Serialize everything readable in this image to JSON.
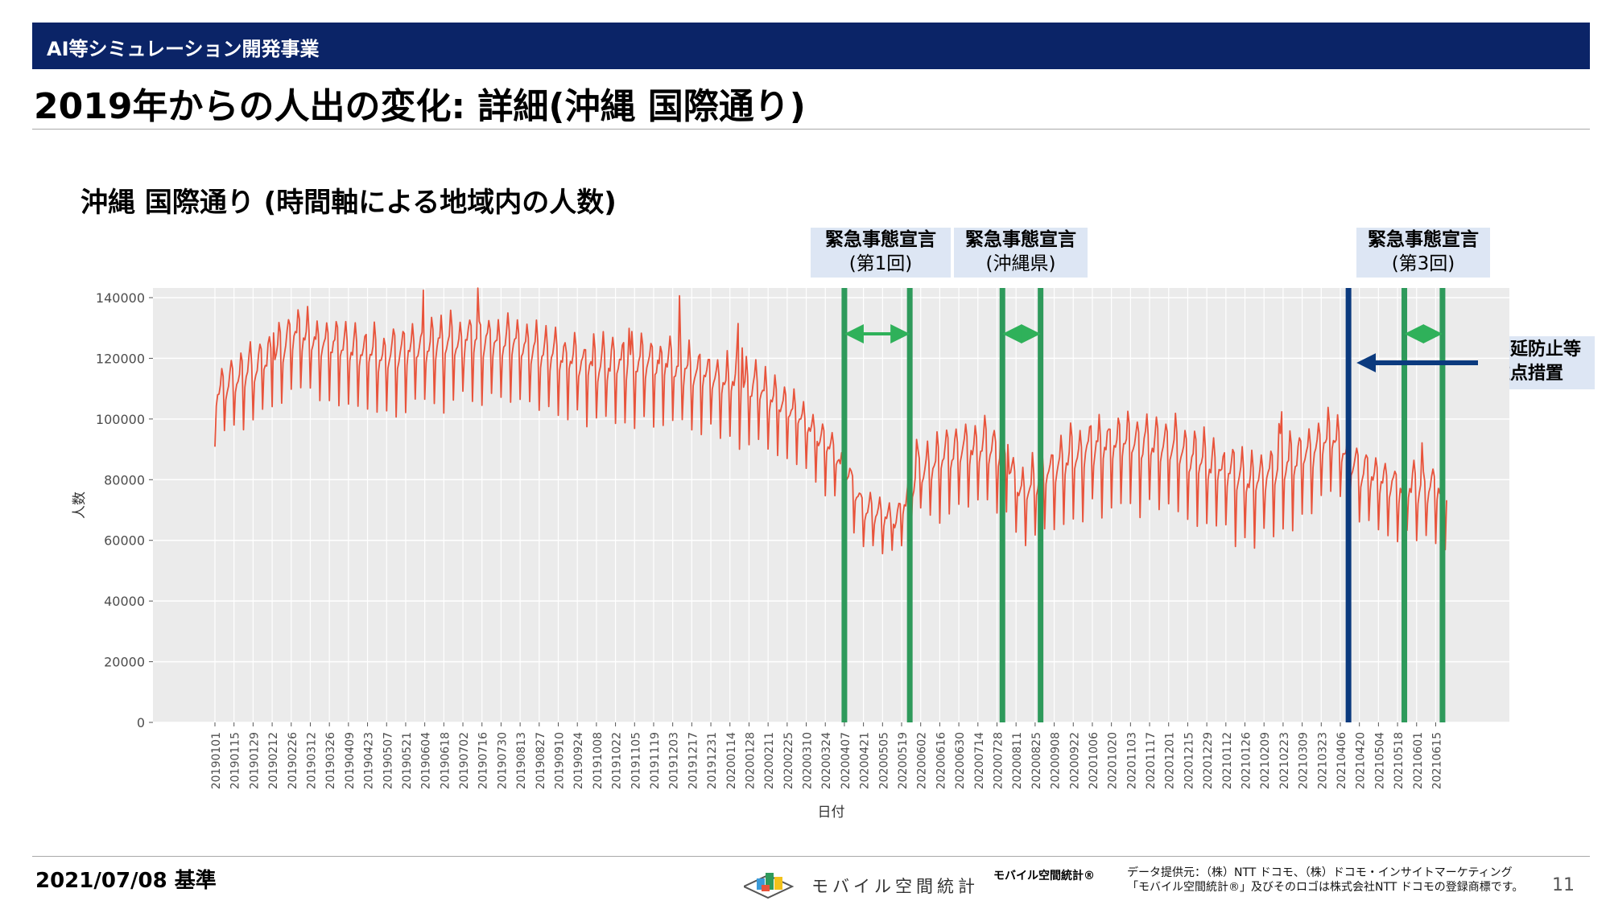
{
  "header": {
    "section": "AI等シミュレーション開発事業"
  },
  "page_title": "2019年からの人出の変化: 詳細(沖縄 国際通り)",
  "chart_title": "沖縄 国際通り (時間軸による地域内の人数)",
  "annotations": {
    "emergency1": {
      "line1": "緊急事態宣言",
      "line2": "(第1回)"
    },
    "emergency_okinawa": {
      "line1": "緊急事態宣言",
      "line2": "(沖縄県)"
    },
    "emergency3": {
      "line1": "緊急事態宣言",
      "line2": "(第3回)"
    },
    "manen": {
      "line1": "まん延防止等",
      "line2": "重点措置"
    }
  },
  "colors": {
    "header_bg": "#0b2467",
    "line": "#e8533b",
    "marker_green": "#2e9a5b",
    "marker_navy": "#0b3a7e",
    "arrow_green": "#2fb15a",
    "label_bg": "#dde6f4",
    "plot_bg": "#ebebeb"
  },
  "chart_data": {
    "type": "line",
    "title": "",
    "xlabel": "日付",
    "ylabel": "人数",
    "ylim": [
      0,
      140000
    ],
    "y_ticks": [
      0,
      20000,
      40000,
      60000,
      80000,
      100000,
      120000,
      140000
    ],
    "x_ticks": [
      "20190101",
      "20190115",
      "20190129",
      "20190212",
      "20190226",
      "20190312",
      "20190326",
      "20190409",
      "20190423",
      "20190507",
      "20190521",
      "20190604",
      "20190618",
      "20190702",
      "20190716",
      "20190730",
      "20190813",
      "20190827",
      "20190910",
      "20190924",
      "20191008",
      "20191022",
      "20191105",
      "20191119",
      "20191203",
      "20191217",
      "20191231",
      "20200114",
      "20200128",
      "20200211",
      "20200225",
      "20200310",
      "20200324",
      "20200407",
      "20200421",
      "20200505",
      "20200519",
      "20200602",
      "20200616",
      "20200630",
      "20200714",
      "20200728",
      "20200811",
      "20200825",
      "20200908",
      "20200922",
      "20201006",
      "20201020",
      "20201103",
      "20201117",
      "20201201",
      "20201215",
      "20201229",
      "20210112",
      "20210126",
      "20210209",
      "20210223",
      "20210309",
      "20210323",
      "20210406",
      "20210420",
      "20210504",
      "20210518",
      "20210601",
      "20210615"
    ],
    "x_range": [
      "2019-01-01",
      "2021-06-23"
    ],
    "grid": true,
    "series": [
      {
        "name": "",
        "values": [
          [
            "2019-01-01",
            103000
          ],
          [
            "2019-02-01",
            112000
          ],
          [
            "2019-03-01",
            122000
          ],
          [
            "2019-04-01",
            119000
          ],
          [
            "2019-05-01",
            115000
          ],
          [
            "2019-06-01",
            118000
          ],
          [
            "2019-07-01",
            120000
          ],
          [
            "2019-08-01",
            120000
          ],
          [
            "2019-09-01",
            116000
          ],
          [
            "2019-10-01",
            112000
          ],
          [
            "2019-11-01",
            113000
          ],
          [
            "2019-12-01",
            112000
          ],
          [
            "2020-01-01",
            108000
          ],
          [
            "2020-02-01",
            105000
          ],
          [
            "2020-03-01",
            97000
          ],
          [
            "2020-04-01",
            84000
          ],
          [
            "2020-04-20",
            67000
          ],
          [
            "2020-05-15",
            63000
          ],
          [
            "2020-06-01",
            78000
          ],
          [
            "2020-07-01",
            85000
          ],
          [
            "2020-07-28",
            85000
          ],
          [
            "2020-08-15",
            71000
          ],
          [
            "2020-09-01",
            76000
          ],
          [
            "2020-10-01",
            84000
          ],
          [
            "2020-11-01",
            86000
          ],
          [
            "2020-12-01",
            85000
          ],
          [
            "2021-01-01",
            78000
          ],
          [
            "2021-02-01",
            73000
          ],
          [
            "2021-03-01",
            80000
          ],
          [
            "2021-04-01",
            88000
          ],
          [
            "2021-04-20",
            78000
          ],
          [
            "2021-05-20",
            72000
          ],
          [
            "2021-06-23",
            72000
          ]
        ],
        "weekly_amplitude": [
          [
            "2019-01-01",
            13000
          ],
          [
            "2019-06-01",
            14000
          ],
          [
            "2019-12-01",
            14000
          ],
          [
            "2020-02-01",
            14000
          ],
          [
            "2020-04-01",
            11000
          ],
          [
            "2020-05-15",
            8000
          ],
          [
            "2020-06-15",
            13000
          ],
          [
            "2020-07-28",
            14000
          ],
          [
            "2020-08-15",
            12000
          ],
          [
            "2020-10-01",
            15000
          ],
          [
            "2021-01-01",
            15000
          ],
          [
            "2021-03-01",
            15000
          ],
          [
            "2021-05-01",
            12000
          ],
          [
            "2021-06-23",
            13000
          ]
        ]
      }
    ],
    "event_lines": [
      {
        "date": "2020-04-07",
        "color": "green"
      },
      {
        "date": "2020-05-25",
        "color": "green"
      },
      {
        "date": "2020-08-01",
        "color": "green"
      },
      {
        "date": "2020-08-29",
        "color": "green"
      },
      {
        "date": "2021-04-12",
        "color": "navy"
      },
      {
        "date": "2021-05-23",
        "color": "green"
      },
      {
        "date": "2021-06-20",
        "color": "green"
      }
    ],
    "periods": [
      {
        "start": "2020-04-07",
        "end": "2020-05-25"
      },
      {
        "start": "2020-08-01",
        "end": "2020-08-29"
      },
      {
        "start": "2021-05-23",
        "end": "2021-06-20"
      }
    ],
    "manen_from": "2021-04-12"
  },
  "footer": {
    "date": "2021/07/08 基準",
    "logo_text": "モバイル空間統計",
    "brand": "モバイル空間統計®",
    "provider_line1": "データ提供元：（株）NTT ドコモ、（株）ドコモ・インサイトマーケティング",
    "provider_line2": "「モバイル空間統計®」及びそのロゴは株式会社NTT ドコモの登録商標です。",
    "page": "11"
  }
}
